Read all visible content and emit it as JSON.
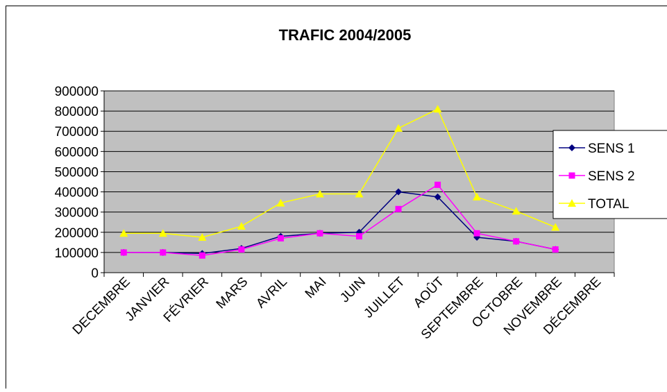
{
  "chart_data": {
    "type": "line",
    "title": "TRAFIC 2004/2005",
    "categories": [
      "DECEMBRE",
      "JANVIER",
      "FÉVRIER",
      "MARS",
      "AVRIL",
      "MAI",
      "JUIN",
      "JUILLET",
      "AOÛT",
      "SEPTEMBRE",
      "OCTOBRE",
      "NOVEMBRE",
      "DÉCEMBRE"
    ],
    "series": [
      {
        "name": "SENS 1",
        "color": "#000080",
        "marker": "diamond",
        "values": [
          100000,
          100000,
          95000,
          120000,
          180000,
          195000,
          200000,
          400000,
          375000,
          175000,
          155000,
          115000,
          null
        ]
      },
      {
        "name": "SENS 2",
        "color": "#ff00ff",
        "marker": "square",
        "values": [
          100000,
          100000,
          85000,
          115000,
          170000,
          195000,
          180000,
          315000,
          435000,
          195000,
          155000,
          115000,
          null
        ]
      },
      {
        "name": "TOTAL",
        "color": "#ffff00",
        "marker": "triangle",
        "values": [
          195000,
          195000,
          175000,
          230000,
          345000,
          390000,
          390000,
          715000,
          810000,
          375000,
          305000,
          225000,
          null
        ]
      }
    ],
    "ylim": [
      0,
      900000
    ],
    "yticks": [
      0,
      100000,
      200000,
      300000,
      400000,
      500000,
      600000,
      700000,
      800000,
      900000
    ],
    "grid": true,
    "legend": "right"
  }
}
